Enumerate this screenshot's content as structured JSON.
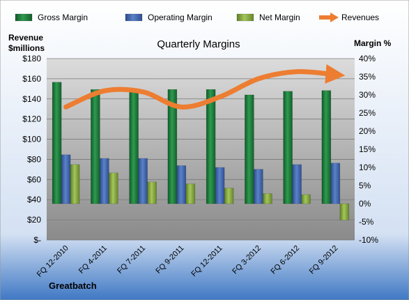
{
  "chart_data": {
    "type": "bar",
    "title": "Quarterly Margins",
    "company": "Greatbatch",
    "categories": [
      "FQ 12-2010",
      "FQ 4-2011",
      "FQ 7-2011",
      "FQ 9-2011",
      "FQ 12-2011",
      "FQ 3-2012",
      "FQ 6-2012",
      "FQ 9-2012"
    ],
    "left_axis": {
      "label_line1": "Revenue",
      "label_line2": "$millions",
      "ylim": [
        0,
        180
      ],
      "ticks": [
        0,
        20,
        40,
        60,
        80,
        100,
        120,
        140,
        160,
        180
      ],
      "tick_labels": [
        "$-",
        "$20",
        "$40",
        "$60",
        "$80",
        "$100",
        "$120",
        "$140",
        "$160",
        "$180"
      ]
    },
    "right_axis": {
      "label": "Margin %",
      "ylim": [
        -10,
        40
      ],
      "ticks": [
        -10,
        -5,
        0,
        5,
        10,
        15,
        20,
        25,
        30,
        35,
        40
      ],
      "tick_labels": [
        "-10%",
        "-5%",
        "0%",
        "5%",
        "10%",
        "15%",
        "20%",
        "25%",
        "30%",
        "35%",
        "40%"
      ]
    },
    "series": [
      {
        "name": "Gross Margin",
        "axis": "right",
        "kind": "bar",
        "color": "#1f7a3d",
        "values": [
          33.5,
          31.5,
          31.5,
          31.5,
          31.5,
          30,
          31,
          31.2
        ]
      },
      {
        "name": "Operating Margin",
        "axis": "right",
        "kind": "bar",
        "color": "#3a5fa8",
        "values": [
          13.5,
          12.5,
          12.5,
          10.5,
          10,
          9.5,
          10.8,
          11.2
        ]
      },
      {
        "name": "Net Margin",
        "axis": "right",
        "kind": "bar",
        "color": "#7fa33a",
        "values": [
          10.8,
          8.5,
          6,
          5.5,
          4.3,
          2.8,
          2.5,
          -4.5
        ]
      },
      {
        "name": "Revenues",
        "axis": "left",
        "kind": "line",
        "color": "#ed7d31",
        "values": [
          132,
          148,
          147,
          132,
          142,
          160,
          167,
          164
        ]
      }
    ],
    "grid": true,
    "legend": "top"
  }
}
